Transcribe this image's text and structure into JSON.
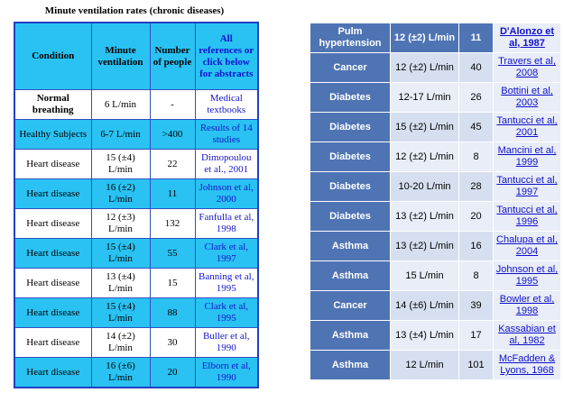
{
  "left_table": {
    "title": "Minute ventilation rates (chronic diseases)",
    "header": [
      "Condition",
      "Minute ventilation",
      "Number of people",
      "All references or click below for abstracts"
    ],
    "rows": [
      [
        "Normal breathing",
        "6 L/min",
        "-",
        "Medical textbooks"
      ],
      [
        "Healthy Subjects",
        "6-7 L/min",
        ">400",
        "Results of 14 studies"
      ],
      [
        "Heart disease",
        "15 (±4) L/min",
        "22",
        "Dimopoulou et al., 2001"
      ],
      [
        "Heart disease",
        "16 (±2) L/min",
        "11",
        "Johnson et al, 2000"
      ],
      [
        "Heart disease",
        "12 (±3) L/min",
        "132",
        "Fanfulla et al, 1998"
      ],
      [
        "Heart disease",
        "15 (±4) L/min",
        "55",
        "Clark et al, 1997"
      ],
      [
        "Heart disease",
        "13 (±4) L/min",
        "15",
        "Banning et al, 1995"
      ],
      [
        "Heart disease",
        "15 (±4) L/min",
        "88",
        "Clark et al, 1995"
      ],
      [
        "Heart disease",
        "14 (±2) L/min",
        "30",
        "Buller et al, 1990"
      ],
      [
        "Heart disease",
        "16 (±6) L/min",
        "20",
        "Elborn et al, 1990"
      ]
    ]
  },
  "right_table": {
    "rows": [
      [
        "Pulm hypertension",
        "12 (±2) L/min",
        "11",
        "D'Alonzo et al, 1987"
      ],
      [
        "Cancer",
        "12 (±2) L/min",
        "40",
        "Travers et al, 2008"
      ],
      [
        "Diabetes",
        "12-17 L/min",
        "26",
        "Bottini et al, 2003"
      ],
      [
        "Diabetes",
        "15 (±2) L/min",
        "45",
        "Tantucci et al, 2001"
      ],
      [
        "Diabetes",
        "12 (±2) L/min",
        "8",
        "Mancini et al, 1999"
      ],
      [
        "Diabetes",
        "10-20 L/min",
        "28",
        "Tantucci et al, 1997"
      ],
      [
        "Diabetes",
        "13 (±2) L/min",
        "20",
        "Tantucci et al, 1996"
      ],
      [
        "Asthma",
        "13 (±2) L/min",
        "16",
        "Chalupa et al, 2004"
      ],
      [
        "Asthma",
        "15 L/min",
        "8",
        "Johnson et al, 1995"
      ],
      [
        "Cancer",
        "14 (±6) L/min",
        "39",
        "Bowler et al, 1998"
      ],
      [
        "Asthma",
        "13 (±4) L/min",
        "17",
        "Kassabian et al, 1982"
      ],
      [
        "Asthma",
        "12 L/min",
        "101",
        "McFadden & Lyons, 1968"
      ]
    ]
  }
}
